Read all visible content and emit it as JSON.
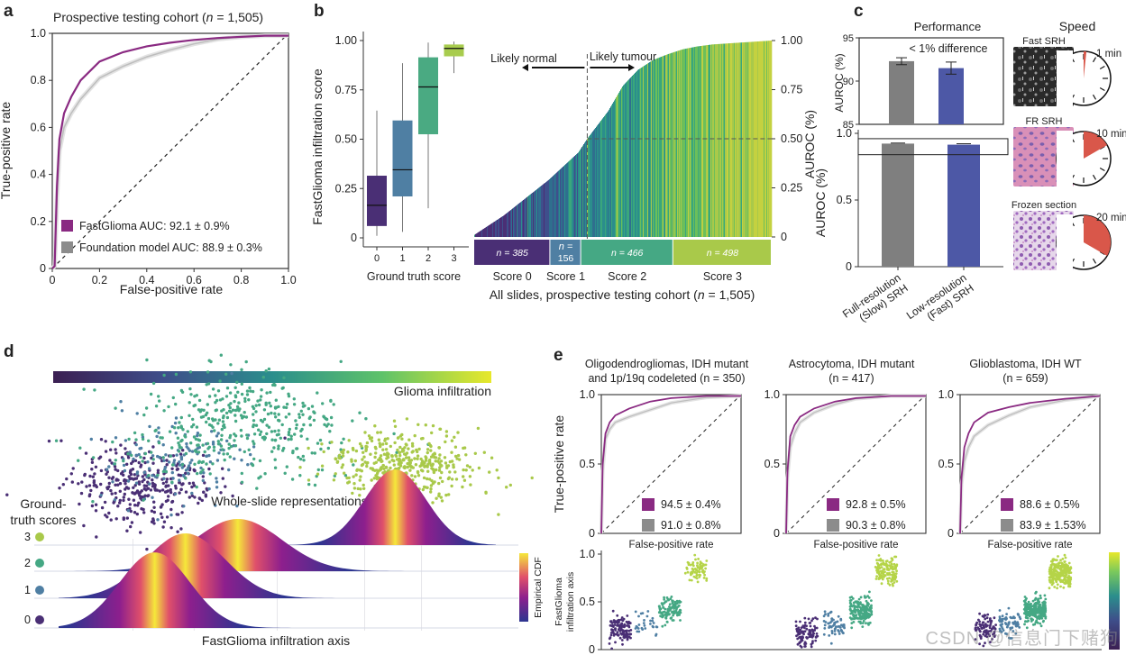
{
  "watermark": "CSDN @信息门下赌狗",
  "chart_data": [
    {
      "id": "a",
      "panel_label": "a",
      "type": "line",
      "title": "Prospective testing cohort (n = 1,505)",
      "title_prefix": "Prospective testing cohort (",
      "title_n": "n",
      "title_suffix": " = 1,505)",
      "xlabel": "False-positive rate",
      "ylabel": "True-positive rate",
      "xlim": [
        0,
        1
      ],
      "ylim": [
        0,
        1
      ],
      "xticks": [
        "0",
        "0.2",
        "0.4",
        "0.6",
        "0.8",
        "1.0"
      ],
      "yticks": [
        "0",
        "0.2",
        "0.4",
        "0.6",
        "0.8",
        "1.0"
      ],
      "diagonal": true,
      "legend_position": "bottom-right",
      "series": [
        {
          "name": "FastGlioma AUC: 92.1 ± 0.9%",
          "color": "#8a2a82",
          "x": [
            0,
            0.01,
            0.02,
            0.03,
            0.05,
            0.08,
            0.12,
            0.2,
            0.3,
            0.4,
            0.5,
            0.6,
            0.7,
            0.8,
            0.9,
            1.0
          ],
          "y": [
            0,
            0.01,
            0.35,
            0.55,
            0.66,
            0.73,
            0.8,
            0.88,
            0.92,
            0.945,
            0.96,
            0.972,
            0.98,
            0.985,
            0.99,
            0.99
          ]
        },
        {
          "name": "Foundation model AUC: 88.9 ± 0.3%",
          "color": "#bdbdbd",
          "x": [
            0,
            0.01,
            0.02,
            0.03,
            0.05,
            0.08,
            0.12,
            0.2,
            0.3,
            0.4,
            0.5,
            0.6,
            0.7,
            0.8,
            0.9,
            1.0
          ],
          "y": [
            0,
            0.01,
            0.3,
            0.5,
            0.6,
            0.66,
            0.72,
            0.81,
            0.86,
            0.9,
            0.93,
            0.955,
            0.975,
            0.985,
            0.99,
            0.99
          ]
        }
      ]
    },
    {
      "id": "b-box",
      "panel_label": "b",
      "type": "box",
      "xlabel": "Ground truth score",
      "ylabel": "FastGlioma infiltration score",
      "categories": [
        "0",
        "1",
        "2",
        "3"
      ],
      "yticks": [
        "0",
        "0.25",
        "0.50",
        "0.75",
        "1.00"
      ],
      "ylim": [
        0,
        1
      ],
      "boxes": [
        {
          "category": "0",
          "min": 0.01,
          "q1": 0.06,
          "median": 0.165,
          "q3": 0.315,
          "max": 0.645,
          "color": "#4a2f75"
        },
        {
          "category": "1",
          "min": 0.03,
          "q1": 0.21,
          "median": 0.345,
          "q3": 0.595,
          "max": 0.885,
          "color": "#4f7fa3"
        },
        {
          "category": "2",
          "min": 0.15,
          "q1": 0.525,
          "median": 0.765,
          "q3": 0.915,
          "max": 0.99,
          "color": "#4aaa82"
        },
        {
          "category": "3",
          "min": 0.835,
          "q1": 0.92,
          "median": 0.96,
          "q3": 0.98,
          "max": 0.995,
          "color": "#a8cc4e"
        }
      ]
    },
    {
      "id": "b-rank",
      "type": "bar",
      "xlabel": "All slides, prospective testing cohort (n = 1,505)",
      "xlabel_prefix": "All slides, prospective testing cohort (",
      "xlabel_n": "n",
      "xlabel_suffix": " = 1,505)",
      "ylabel": "AUROC (%)",
      "yticks": [
        "0",
        "0.25",
        "0.50",
        "0.75",
        "1.00"
      ],
      "ylim": [
        0,
        1
      ],
      "threshold": 0.5,
      "annotation_left": "Likely normal",
      "annotation_right": "Likely tumour",
      "sorted_score_curve": {
        "rank_fraction": [
          0,
          0.05,
          0.1,
          0.15,
          0.2,
          0.25,
          0.3,
          0.35,
          0.38,
          0.45,
          0.5,
          0.55,
          0.6,
          0.65,
          0.7,
          0.75,
          0.8,
          0.85,
          0.9,
          0.95,
          1.0
        ],
        "score": [
          0.01,
          0.06,
          0.11,
          0.17,
          0.23,
          0.29,
          0.36,
          0.43,
          0.5,
          0.64,
          0.77,
          0.85,
          0.9,
          0.93,
          0.955,
          0.97,
          0.98,
          0.985,
          0.99,
          0.995,
          1.0
        ]
      },
      "groups": [
        {
          "label": "Score 0",
          "n_label": "n = 385",
          "n": 385,
          "color": "#4a2f75"
        },
        {
          "label": "Score 1",
          "n_label": "n = 156",
          "n": 156,
          "color": "#4f7fa3"
        },
        {
          "label": "Score 2",
          "n_label": "n = 466",
          "n": 466,
          "color": "#45a884"
        },
        {
          "label": "Score 3",
          "n_label": "n = 498",
          "n": 498,
          "color": "#a9c94a"
        }
      ]
    },
    {
      "id": "c-inset",
      "panel_label": "c",
      "type": "bar",
      "title": "Performance",
      "annotation": "< 1% difference",
      "ylabel": "AUROC (%)",
      "ylim": [
        85,
        95
      ],
      "yticks": [
        "85",
        "90",
        "95"
      ],
      "categories": [
        "Full-resolution (Slow) SRH",
        "Low-resolution (Fast) SRH"
      ],
      "values": [
        92.3,
        91.5
      ],
      "errors": [
        0.4,
        0.7
      ],
      "colors": [
        "#7f7f7f",
        "#4d58a6"
      ]
    },
    {
      "id": "c-main",
      "type": "bar",
      "ylabel": "AUROC (%)",
      "ylim": [
        0,
        1
      ],
      "yticks": [
        "0",
        "0.5",
        "1.0"
      ],
      "zoom_box_range": [
        0.84,
        0.96
      ],
      "categories": [
        "Full-resolution (Slow) SRH",
        "Low-resolution (Fast) SRH"
      ],
      "category_lines": [
        [
          "Full-resolution",
          "(Slow) SRH"
        ],
        [
          "Low-resolution",
          "(Fast) SRH"
        ]
      ],
      "values": [
        0.923,
        0.915
      ],
      "errors": [
        0.004,
        0.007
      ],
      "colors": [
        "#7f7f7f",
        "#4d58a6"
      ]
    },
    {
      "id": "c-speed",
      "type": "pie",
      "title": "Speed",
      "items": [
        {
          "label": "Fast SRH",
          "time_label": "1 min",
          "minutes": 1,
          "image": "grayscale-srh-tile"
        },
        {
          "label": "FR SRH",
          "time_label": "10 min",
          "minutes": 10,
          "image": "virtual-he-srh-tile"
        },
        {
          "label": "Frozen section",
          "time_label": "20 min",
          "minutes": 20,
          "image": "frozen-section-tile"
        }
      ],
      "clock_total_minutes": 60,
      "wedge_color": "#d9574a"
    },
    {
      "id": "d",
      "panel_label": "d",
      "type": "scatter",
      "colorbar_label": "Glioma infiltration",
      "embedding_label": "Whole-slide representations",
      "groups_label": [
        "Ground-",
        "truth scores"
      ],
      "ridge_xlabel": "FastGlioma infiltration axis",
      "ridge_colorbar_label": "Empirical CDF",
      "groups": [
        {
          "score": "0",
          "color": "#4a2f75",
          "ridge_peak": 0.22,
          "ridge_sd": 0.08
        },
        {
          "score": "1",
          "color": "#4f7fa3",
          "ridge_peak": 0.29,
          "ridge_sd": 0.09
        },
        {
          "score": "2",
          "color": "#45a884",
          "ridge_peak": 0.41,
          "ridge_sd": 0.1
        },
        {
          "score": "3",
          "color": "#a9c94a",
          "ridge_peak": 0.77,
          "ridge_sd": 0.07
        }
      ]
    },
    {
      "id": "e",
      "panel_label": "e",
      "type": "line",
      "xlabel": "False-positive rate",
      "ylabel": "True-positive rate",
      "strip_ylabel": [
        "FastGlioma",
        "infiltration axis"
      ],
      "yticks": [
        "0",
        "0.5",
        "1.0"
      ],
      "subplots": [
        {
          "title_lines": [
            "Oligodendrogliomas, IDH mutant",
            "and 1p/19q codeleted (n = 350)"
          ],
          "fastglioma": "94.5 ± 0.4%",
          "foundation": "91.0 ± 0.8%",
          "y_fast": [
            0,
            0.5,
            0.72,
            0.8,
            0.85,
            0.9,
            0.95,
            0.975,
            0.99,
            0.99
          ],
          "y_found": [
            0,
            0.45,
            0.68,
            0.75,
            0.8,
            0.84,
            0.89,
            0.94,
            0.98,
            0.99
          ],
          "strip_medians": [
            0.2,
            0.27,
            0.42,
            0.83
          ]
        },
        {
          "title_lines": [
            "Astrocytoma, IDH mutant",
            "(n = 417)"
          ],
          "fastglioma": "92.8 ± 0.5%",
          "foundation": "90.3 ± 0.8%",
          "y_fast": [
            0,
            0.45,
            0.7,
            0.78,
            0.84,
            0.9,
            0.95,
            0.975,
            0.99,
            0.99
          ],
          "y_found": [
            0,
            0.4,
            0.62,
            0.72,
            0.8,
            0.87,
            0.93,
            0.97,
            0.99,
            0.99
          ],
          "strip_medians": [
            0.16,
            0.26,
            0.4,
            0.83
          ]
        },
        {
          "title_lines": [
            "Glioblastoma, IDH WT",
            "(n = 659)"
          ],
          "fastglioma": "88.6 ± 0.5%",
          "foundation": "83.9 ± 1.53%",
          "y_fast": [
            0,
            0.4,
            0.62,
            0.72,
            0.8,
            0.87,
            0.91,
            0.94,
            0.97,
            0.99
          ],
          "y_found": [
            0,
            0.35,
            0.52,
            0.62,
            0.7,
            0.78,
            0.85,
            0.91,
            0.96,
            0.99
          ],
          "strip_medians": [
            0.22,
            0.28,
            0.4,
            0.8
          ]
        }
      ],
      "roc_x": [
        0,
        0.01,
        0.03,
        0.06,
        0.1,
        0.2,
        0.35,
        0.5,
        0.75,
        1.0
      ],
      "series_colors": {
        "fastglioma": "#8a2a82",
        "foundation": "#bdbdbd"
      },
      "strip_colors": [
        "#4a2f75",
        "#4f7fa3",
        "#45a884",
        "#b5d448"
      ]
    }
  ]
}
